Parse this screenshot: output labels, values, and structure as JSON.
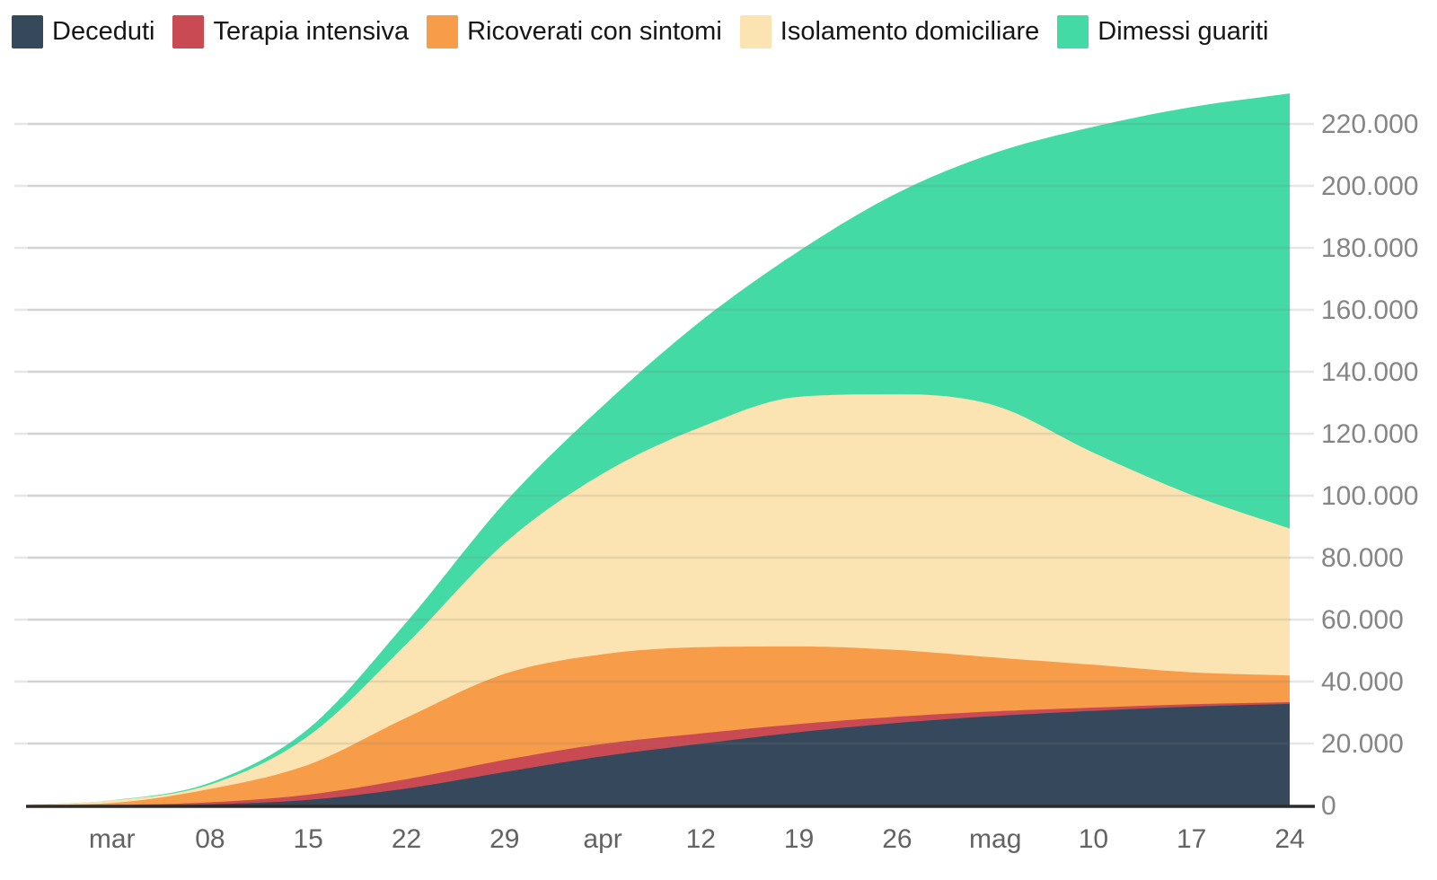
{
  "page": {
    "background": "#ffffff",
    "axis_line_color": "#2b2b2b",
    "gridline_color": "#e6e6e6",
    "y_label_color": "#858585",
    "x_label_color": "#636363",
    "legend_text_color": "#161616"
  },
  "chart_data": {
    "type": "area",
    "stacked": true,
    "title": "",
    "xlabel": "",
    "ylabel": "",
    "legend_position": "top-left",
    "grid": "horizontal",
    "x_unit": "days since 24 February 2020 (weekly samples read from chart)",
    "x": [
      0,
      6,
      13,
      20,
      27,
      34,
      41,
      48,
      55,
      62,
      69,
      76,
      83,
      90
    ],
    "x_tick_days": [
      6,
      13,
      20,
      27,
      34,
      41,
      48,
      55,
      62,
      69,
      76,
      83,
      90
    ],
    "x_tick_labels": [
      "mar",
      "08",
      "15",
      "22",
      "29",
      "apr",
      "12",
      "19",
      "26",
      "mag",
      "10",
      "17",
      "24"
    ],
    "series": [
      {
        "name": "Deceduti",
        "color": "#36495c",
        "values": [
          7,
          34,
          366,
          1809,
          5476,
          10779,
          15887,
          19899,
          23660,
          26644,
          28884,
          30560,
          31908,
          32785
        ]
      },
      {
        "name": "Terapia intensiva",
        "color": "#c94a52",
        "values": [
          27,
          140,
          650,
          1672,
          3009,
          3906,
          3977,
          3343,
          2635,
          2009,
          1501,
          1027,
          762,
          553
        ]
      },
      {
        "name": "Ricoverati con sintomi",
        "color": "#f79c48",
        "values": [
          101,
          639,
          4316,
          9663,
          19846,
          27795,
          28949,
          27847,
          25033,
          21533,
          17357,
          13834,
          10311,
          8613
        ]
      },
      {
        "name": "Isolamento domiciliare",
        "color": "#fbe4b2",
        "values": [
          94,
          798,
          1421,
          9268,
          23783,
          42179,
          58320,
          71063,
          80589,
          82561,
          81321,
          68463,
          57278,
          47428
        ]
      },
      {
        "name": "Dimessi guariti",
        "color": "#43daa6",
        "values": [
          1,
          83,
          622,
          2335,
          7024,
          13030,
          21815,
          34211,
          47055,
          64928,
          81654,
          105186,
          125176,
          140479
        ]
      }
    ],
    "y_ticks": [
      0,
      20000,
      40000,
      60000,
      80000,
      100000,
      120000,
      140000,
      160000,
      180000,
      200000,
      220000
    ],
    "y_tick_labels": [
      "0",
      "20.000",
      "40.000",
      "60.000",
      "80.000",
      "100.000",
      "120.000",
      "140.000",
      "160.000",
      "180.000",
      "200.000",
      "220.000"
    ],
    "ylim": [
      0,
      230500
    ]
  }
}
